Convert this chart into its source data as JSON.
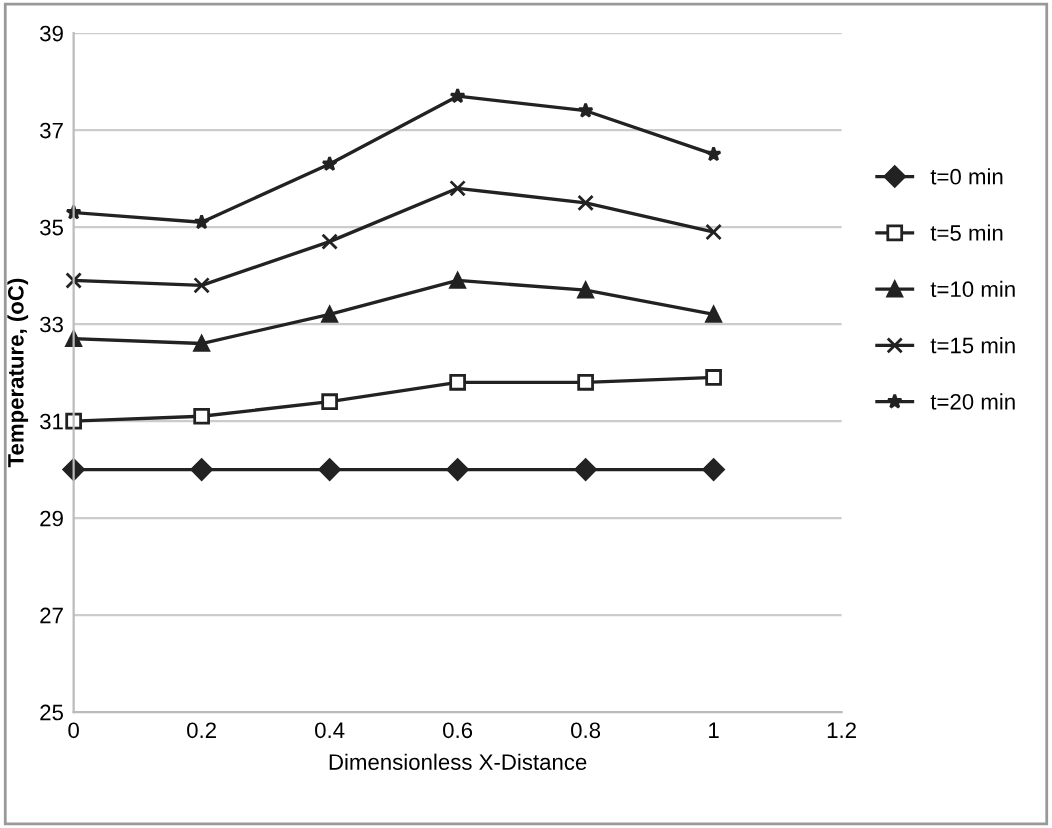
{
  "chart_data": {
    "type": "line",
    "xlabel": "Dimensionless X-Distance",
    "ylabel": "Temperature, (oC)",
    "x": [
      0,
      0.2,
      0.4,
      0.6,
      0.8,
      1
    ],
    "series": [
      {
        "name": "t=0 min",
        "color": "#222222",
        "marker": "diamond",
        "values": [
          30.0,
          30.0,
          30.0,
          30.0,
          30.0,
          30.0
        ]
      },
      {
        "name": "t=5 min",
        "color": "#222222",
        "marker": "square",
        "values": [
          31.0,
          31.1,
          31.4,
          31.8,
          31.8,
          31.9
        ]
      },
      {
        "name": "t=10 min",
        "color": "#222222",
        "marker": "triangle",
        "values": [
          32.7,
          32.6,
          33.2,
          33.9,
          33.7,
          33.2
        ]
      },
      {
        "name": "t=15 min",
        "color": "#222222",
        "marker": "cross",
        "values": [
          33.9,
          33.8,
          34.7,
          35.8,
          35.5,
          34.9
        ]
      },
      {
        "name": "t=20 min",
        "color": "#222222",
        "marker": "star",
        "values": [
          35.3,
          35.1,
          36.3,
          37.7,
          37.4,
          36.5
        ]
      }
    ],
    "xlim": [
      0,
      1.2
    ],
    "xticks": [
      0,
      0.2,
      0.4,
      0.6,
      0.8,
      1,
      1.2
    ],
    "ylim": [
      25,
      39
    ],
    "yticks": [
      25,
      27,
      29,
      31,
      33,
      35,
      37,
      39
    ],
    "grid": "y",
    "legend": "right"
  }
}
